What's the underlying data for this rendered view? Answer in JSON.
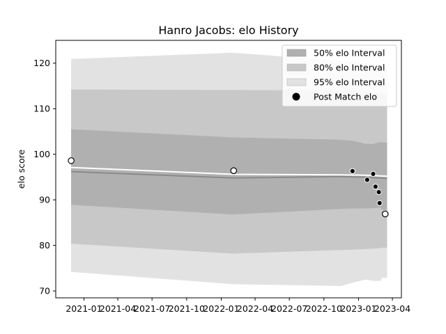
{
  "chart_data": {
    "type": "line",
    "title": "Hanro Jacobs: elo History",
    "xlabel": "",
    "ylabel": "elo score",
    "x_ticks": [
      "2021-01",
      "2021-04",
      "2021-07",
      "2021-10",
      "2022-01",
      "2022-04",
      "2022-07",
      "2022-10",
      "2023-01",
      "2023-04"
    ],
    "y_ticks": [
      70,
      80,
      90,
      100,
      110,
      120
    ],
    "ylim": [
      68.5,
      125
    ],
    "xlim": [
      "2020-10-18",
      "2023-04-25"
    ],
    "grid": false,
    "legend_position": "top-right",
    "legend": [
      {
        "label": "50% elo Interval",
        "color": "#b0b0b0"
      },
      {
        "label": "80% elo Interval",
        "color": "#c8c8c8"
      },
      {
        "label": "95% elo Interval",
        "color": "#e2e2e2"
      },
      {
        "label": "Post Match elo",
        "color": "#000000"
      }
    ],
    "bands": {
      "x": [
        "2020-11-28",
        "2022-02-01",
        "2022-11-15",
        "2022-12-20",
        "2023-01-20",
        "2023-02-10",
        "2023-02-28",
        "2023-03-05",
        "2023-03-18"
      ],
      "p95": {
        "upper": [
          120.9,
          122.3,
          120.5,
          120.3,
          120.0,
          119.8,
          119.6,
          119.5,
          119.4
        ],
        "lower": [
          74.2,
          71.5,
          71.1,
          71.9,
          72.5,
          72.2,
          72.2,
          72.9,
          72.9
        ]
      },
      "p80": {
        "upper": [
          114.2,
          114.1,
          114.0,
          114.0,
          113.7,
          113.5,
          113.4,
          113.3,
          113.3
        ],
        "lower": [
          80.4,
          78.2,
          79.0,
          79.1,
          79.2,
          79.3,
          79.4,
          79.5,
          79.5
        ]
      },
      "p50": {
        "upper": [
          105.5,
          103.7,
          103.2,
          102.9,
          102.3,
          102.3,
          102.7,
          102.6,
          102.6
        ],
        "lower": [
          88.9,
          86.8,
          88.0,
          88.1,
          88.1,
          88.2,
          88.3,
          87.8,
          87.8
        ]
      }
    },
    "median": {
      "x": [
        "2020-11-28",
        "2022-02-01",
        "2022-11-15",
        "2023-01-15",
        "2023-03-18"
      ],
      "y": [
        96.2,
        94.8,
        95.1,
        95.0,
        94.7
      ]
    },
    "mean": {
      "x": [
        "2020-11-28",
        "2022-02-01",
        "2022-11-15",
        "2023-01-15",
        "2023-03-18"
      ],
      "y": [
        97.1,
        95.6,
        95.5,
        95.4,
        95.2
      ]
    },
    "post_match_elo": [
      {
        "x": "2020-11-28",
        "y": 98.6
      },
      {
        "x": "2022-02-03",
        "y": 96.4
      },
      {
        "x": "2022-12-16",
        "y": 96.3
      },
      {
        "x": "2023-01-24",
        "y": 94.4
      },
      {
        "x": "2023-02-09",
        "y": 95.7
      },
      {
        "x": "2023-02-15",
        "y": 92.9
      },
      {
        "x": "2023-02-24",
        "y": 91.7
      },
      {
        "x": "2023-02-26",
        "y": 89.3
      },
      {
        "x": "2023-03-13",
        "y": 86.9
      }
    ]
  }
}
